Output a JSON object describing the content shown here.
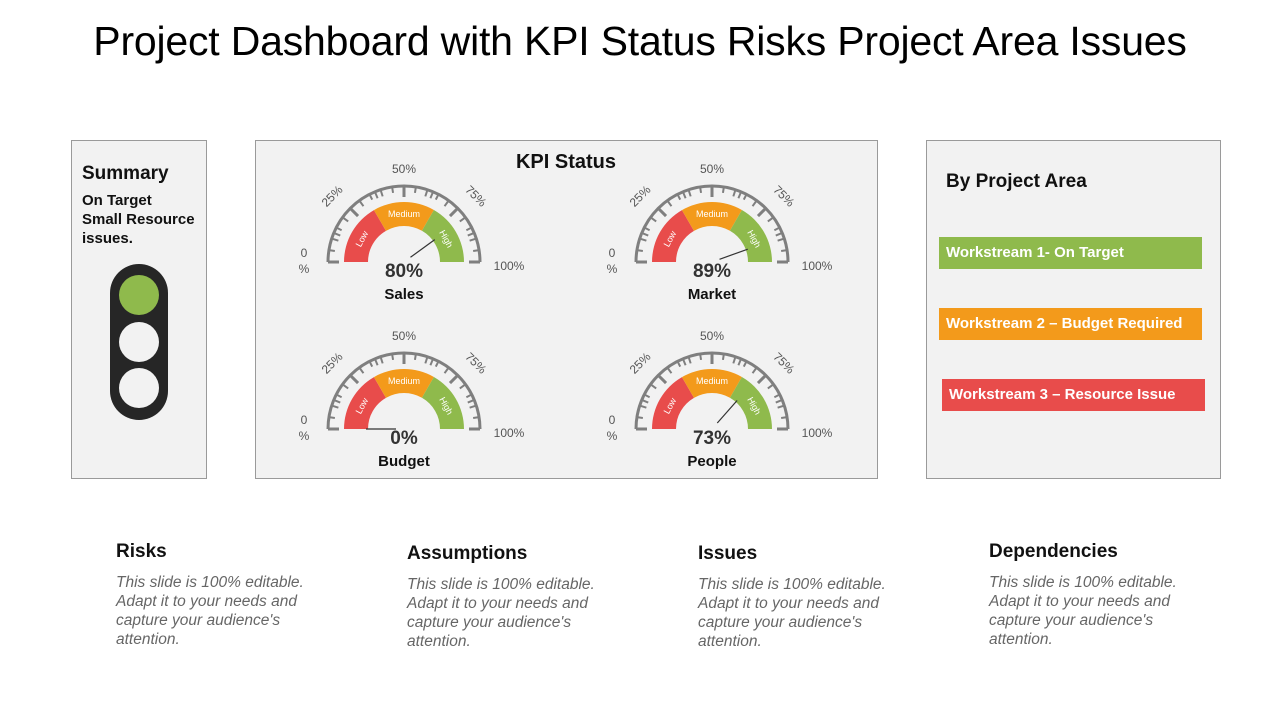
{
  "title": "Project Dashboard with KPI Status Risks Project Area Issues",
  "summary": {
    "heading": "Summary",
    "text": "On Target\n Small Resource\nissues.",
    "lights": [
      "#8fba4c",
      "#f2f2f2",
      "#f2f2f2"
    ]
  },
  "kpi": {
    "heading": "KPI Status",
    "scale_labels": {
      "p0": "0",
      "pct": "%",
      "p25": "25%",
      "p50": "50%",
      "p75": "75%",
      "p100": "100%"
    },
    "band_labels": [
      "Low",
      "Medium",
      "High"
    ],
    "band_colors": {
      "low": "#e84c4b",
      "medium": "#f39a1b",
      "high": "#8fba4c"
    },
    "gauges": [
      {
        "name": "Sales",
        "value": 80,
        "value_label": "80%"
      },
      {
        "name": "Market",
        "value": 89,
        "value_label": "89%"
      },
      {
        "name": "Budget",
        "value": 0,
        "value_label": "0%"
      },
      {
        "name": "People",
        "value": 73,
        "value_label": "73%"
      }
    ]
  },
  "project_area": {
    "heading": "By Project Area",
    "items": [
      {
        "label": "Workstream 1- On Target",
        "color": "#8fba4c"
      },
      {
        "label": "Workstream 2 – Budget Required",
        "color": "#f39a1b"
      },
      {
        "label": "Workstream 3 – Resource Issue",
        "color": "#e84c4b"
      }
    ]
  },
  "sections": [
    {
      "heading": "Risks",
      "text": "This slide is 100% editable. Adapt it to your needs and capture your audience's attention."
    },
    {
      "heading": "Assumptions",
      "text": "This slide is 100% editable. Adapt it to your needs and capture your audience's attention."
    },
    {
      "heading": "Issues",
      "text": "This slide is 100% editable. Adapt it to your needs and capture your audience's attention."
    },
    {
      "heading": "Dependencies",
      "text": "This slide is 100% editable. Adapt it to your needs and capture your audience's attention."
    }
  ]
}
